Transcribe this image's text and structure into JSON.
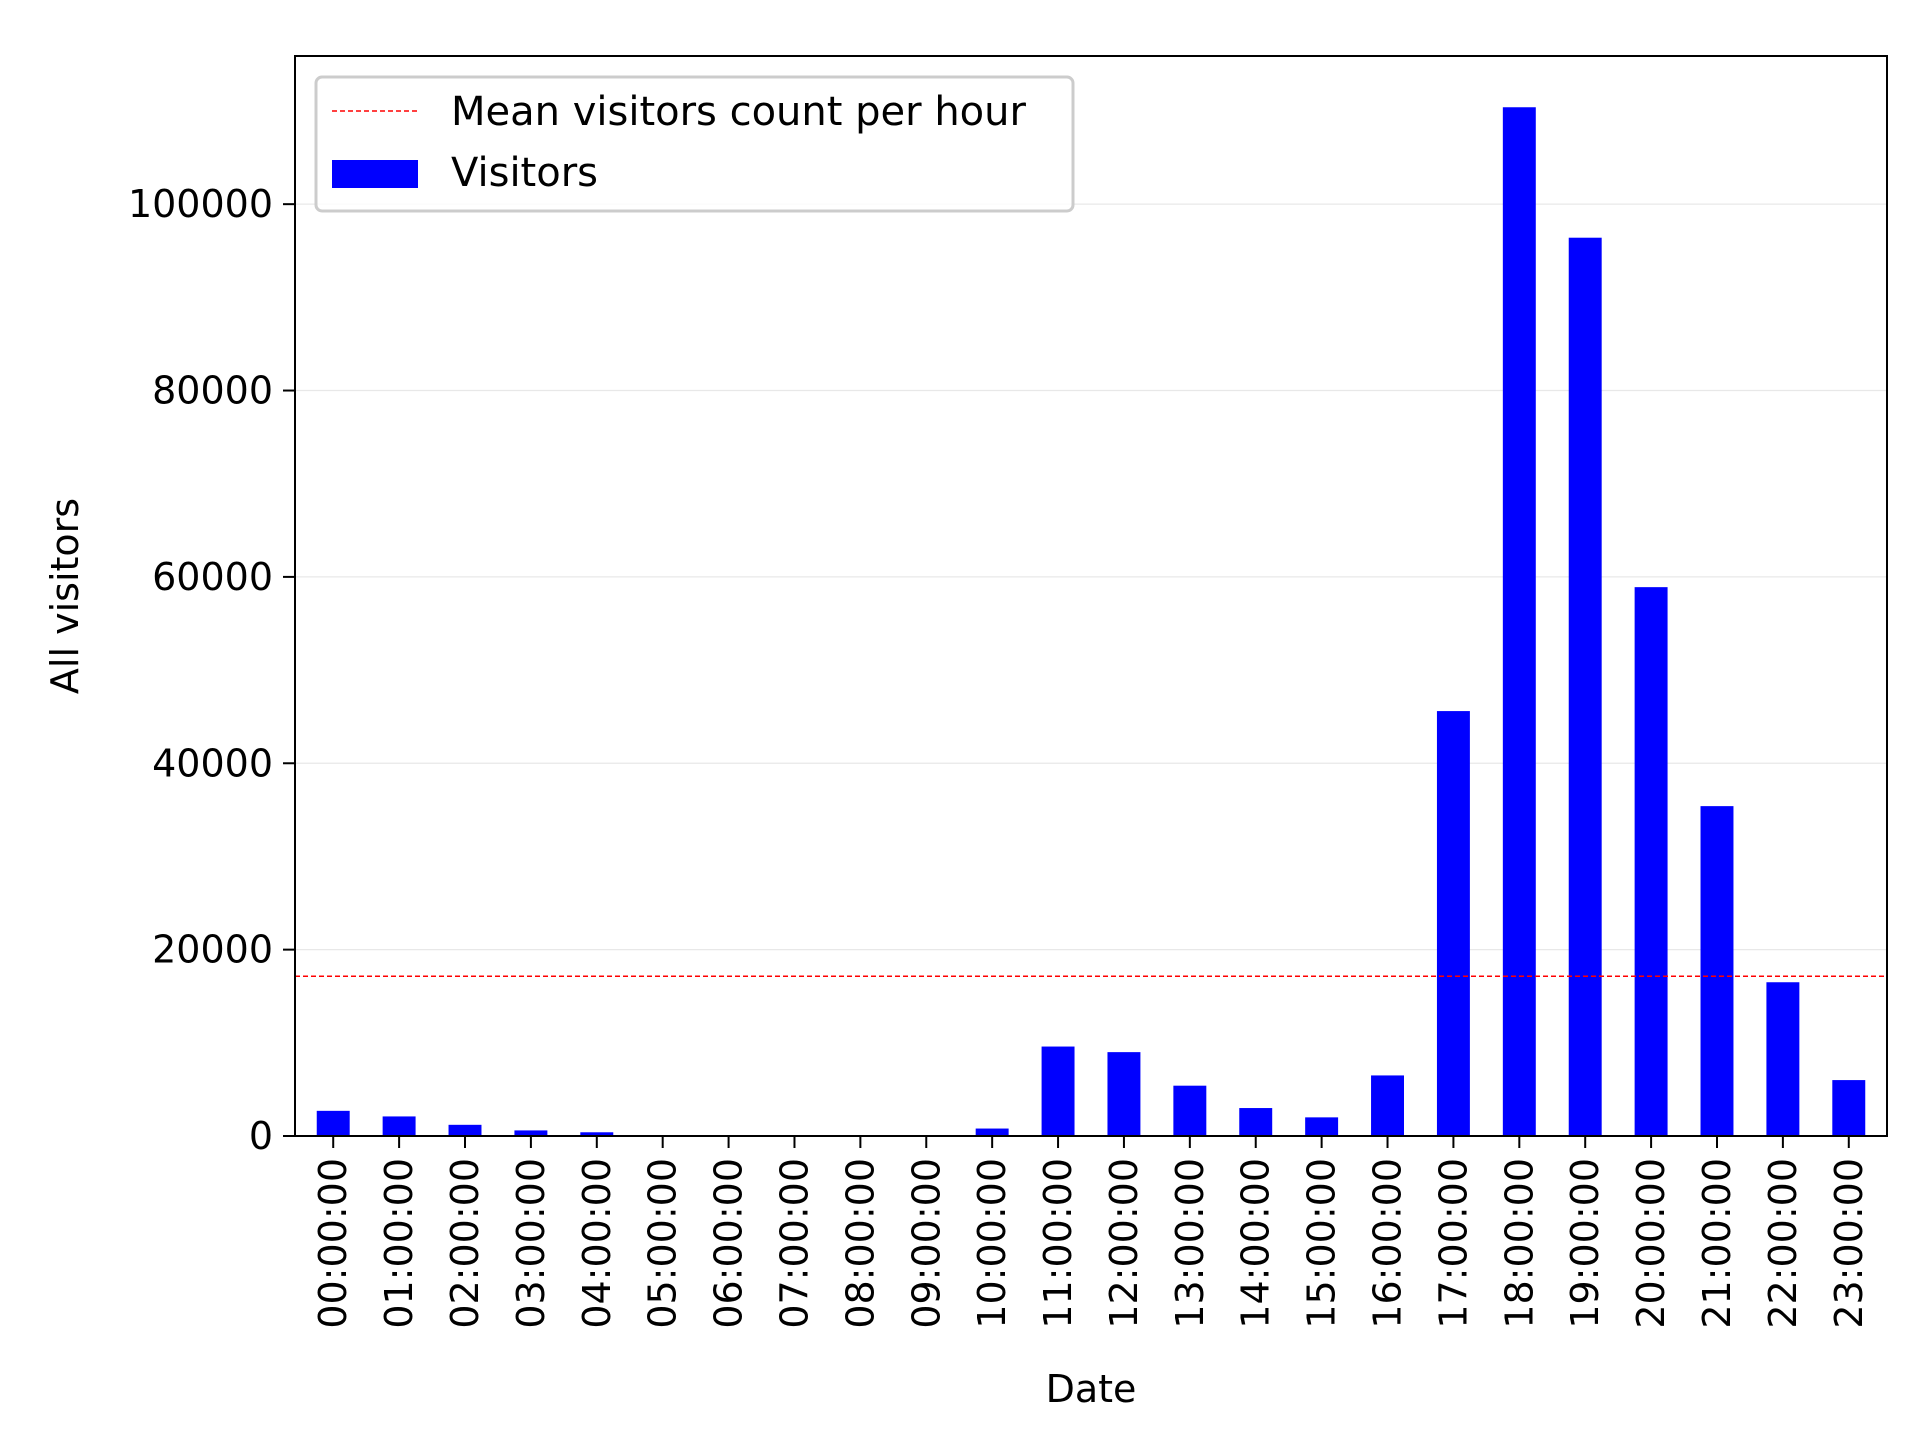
{
  "chart_data": {
    "type": "bar",
    "title": "",
    "xlabel": "Date",
    "ylabel": "All visitors",
    "categories": [
      "00:00:00",
      "01:00:00",
      "02:00:00",
      "03:00:00",
      "04:00:00",
      "05:00:00",
      "06:00:00",
      "07:00:00",
      "08:00:00",
      "09:00:00",
      "10:00:00",
      "11:00:00",
      "12:00:00",
      "13:00:00",
      "14:00:00",
      "15:00:00",
      "16:00:00",
      "17:00:00",
      "18:00:00",
      "19:00:00",
      "20:00:00",
      "21:00:00",
      "22:00:00",
      "23:00:00"
    ],
    "series": [
      {
        "name": "Visitors",
        "color": "#0000ff",
        "values": [
          2700,
          2100,
          1200,
          600,
          400,
          0,
          0,
          0,
          0,
          0,
          800,
          9600,
          9000,
          5400,
          3000,
          2000,
          6500,
          45600,
          110400,
          96400,
          58900,
          35400,
          16500,
          6000
        ]
      }
    ],
    "reference_lines": [
      {
        "name": "Mean visitors count per hour",
        "value": 17150,
        "color": "#ff0000",
        "style": "dashed"
      }
    ],
    "ylim": [
      0,
      115900
    ],
    "yticks": [
      0,
      20000,
      40000,
      60000,
      80000,
      100000
    ],
    "ytick_labels": [
      "0",
      "20000",
      "40000",
      "60000",
      "80000",
      "100000"
    ],
    "grid": "y",
    "legend_position": "upper-left"
  }
}
